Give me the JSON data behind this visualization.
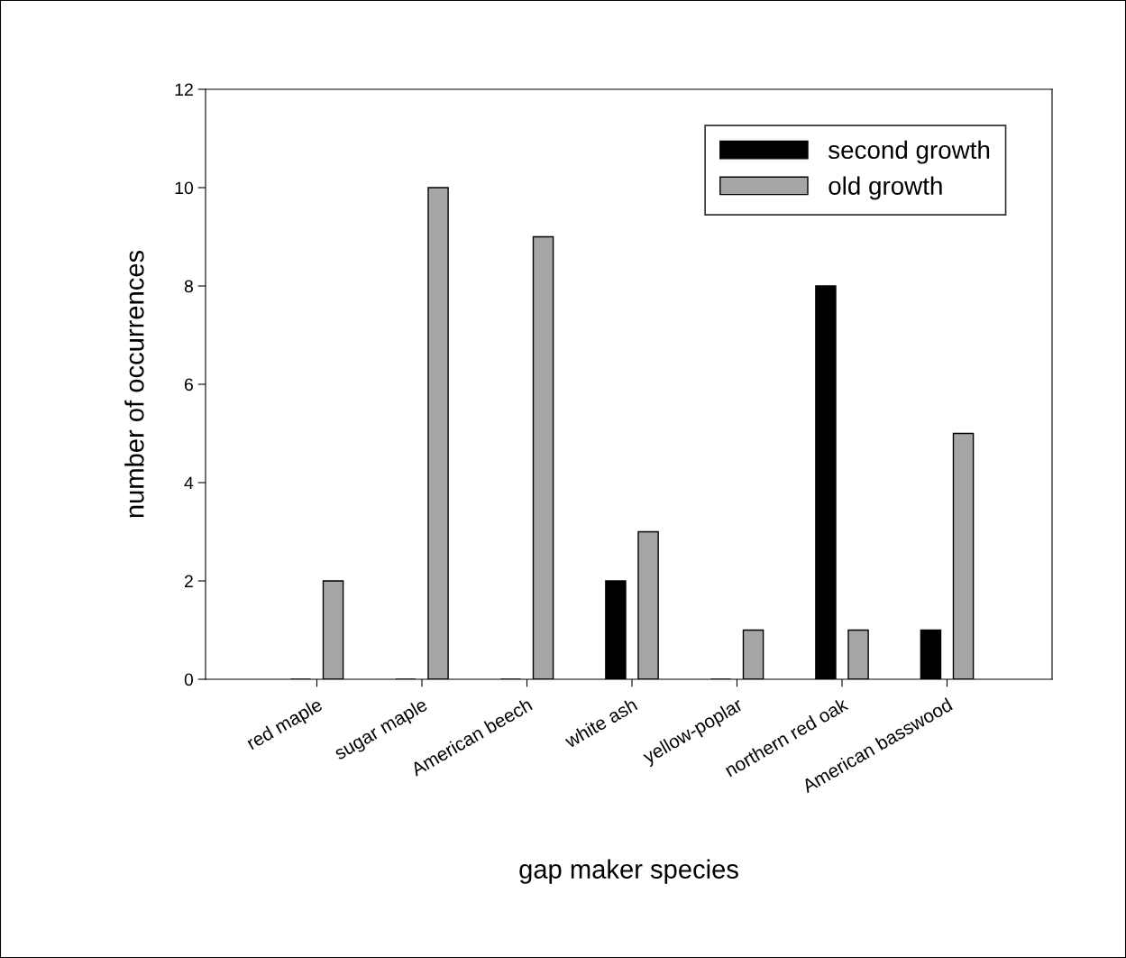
{
  "chart_data": {
    "type": "bar",
    "xlabel": "gap maker species",
    "ylabel": "number of occurrences",
    "categories": [
      "red maple",
      "sugar maple",
      "American beech",
      "white ash",
      "yellow-poplar",
      "northern red oak",
      "American basswood"
    ],
    "series": [
      {
        "name": "second growth",
        "color": "#000000",
        "values": [
          0,
          0,
          0,
          2,
          0,
          8,
          1
        ]
      },
      {
        "name": "old growth",
        "color": "#a6a6a6",
        "values": [
          2,
          10,
          9,
          3,
          1,
          1,
          5
        ]
      }
    ],
    "ylim": [
      0,
      12
    ],
    "yticks": [
      0,
      2,
      4,
      6,
      8,
      10,
      12
    ],
    "grid": false,
    "legend": "top right"
  }
}
